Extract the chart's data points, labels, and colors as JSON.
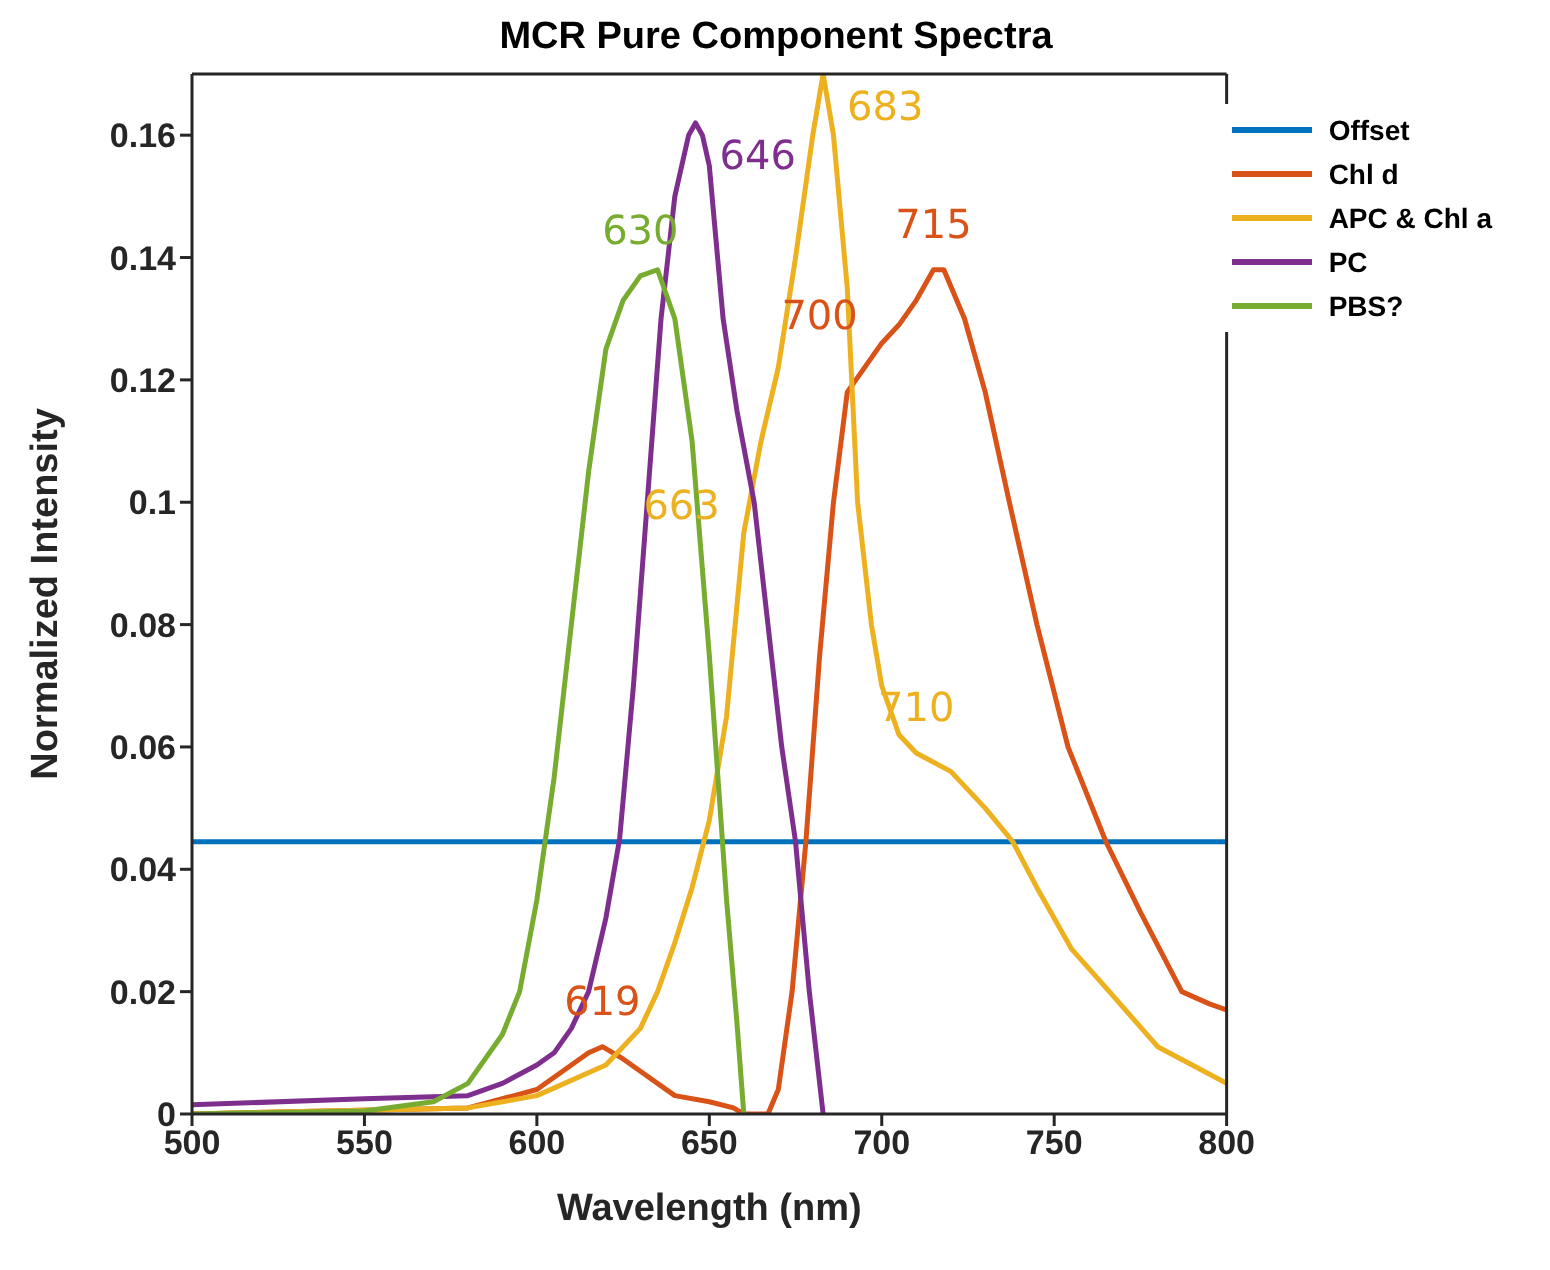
{
  "chart_data": {
    "type": "line",
    "title": "MCR Pure Component Spectra",
    "xlabel": "Wavelength (nm)",
    "ylabel": "Normalized Intensity",
    "xlim": [
      500,
      800
    ],
    "xticks": [
      500,
      550,
      600,
      650,
      700,
      750,
      800
    ],
    "ylim": [
      0,
      0.17
    ],
    "yticks": [
      0,
      0.02,
      0.04,
      0.06,
      0.08,
      0.1,
      0.12,
      0.14,
      0.16
    ],
    "grid": false,
    "legend": "top right",
    "marker": "none",
    "line_style": "solid",
    "series": [
      {
        "name": "Offset",
        "color": "#0072bd",
        "x": [
          500,
          800
        ],
        "values": [
          0.0445,
          0.0445
        ]
      },
      {
        "name": "Chl d",
        "color": "#d95319",
        "x": [
          500,
          580,
          600,
          610,
          615,
          619,
          625,
          630,
          640,
          650,
          657,
          660,
          667,
          670,
          674,
          678,
          682,
          686,
          690,
          695,
          700,
          705,
          710,
          715,
          718,
          724,
          730,
          737,
          745,
          754,
          765,
          775,
          787,
          795,
          800
        ],
        "values": [
          0,
          0.001,
          0.004,
          0.008,
          0.01,
          0.011,
          0.009,
          0.007,
          0.003,
          0.002,
          0.001,
          0,
          0,
          0.004,
          0.02,
          0.0445,
          0.075,
          0.1,
          0.118,
          0.122,
          0.126,
          0.129,
          0.133,
          0.138,
          0.138,
          0.13,
          0.118,
          0.1,
          0.08,
          0.06,
          0.0445,
          0.033,
          0.02,
          0.018,
          0.017
        ]
      },
      {
        "name": "APC & Chl a",
        "color": "#edb120",
        "x": [
          500,
          580,
          600,
          620,
          630,
          635,
          640,
          645,
          650,
          655,
          660,
          665,
          670,
          675,
          680,
          683,
          686,
          690,
          693,
          697,
          700,
          705,
          710,
          720,
          730,
          738,
          745,
          755,
          766,
          780,
          790,
          800
        ],
        "values": [
          0,
          0.001,
          0.003,
          0.008,
          0.014,
          0.02,
          0.028,
          0.037,
          0.048,
          0.065,
          0.095,
          0.11,
          0.122,
          0.14,
          0.16,
          0.17,
          0.16,
          0.135,
          0.1,
          0.08,
          0.07,
          0.062,
          0.059,
          0.056,
          0.05,
          0.0445,
          0.037,
          0.027,
          0.02,
          0.011,
          0.008,
          0.005
        ]
      },
      {
        "name": "PC",
        "color": "#7e2f8e",
        "x": [
          500,
          550,
          580,
          590,
          600,
          605,
          610,
          615,
          620,
          624,
          628,
          632,
          636,
          640,
          644,
          646,
          648,
          650,
          654,
          658,
          663,
          667,
          671,
          675,
          679,
          683
        ],
        "values": [
          0.0015,
          0.0025,
          0.003,
          0.005,
          0.008,
          0.01,
          0.014,
          0.02,
          0.032,
          0.045,
          0.07,
          0.1,
          0.13,
          0.15,
          0.16,
          0.162,
          0.16,
          0.155,
          0.13,
          0.115,
          0.1,
          0.08,
          0.06,
          0.0445,
          0.02,
          0
        ]
      },
      {
        "name": "PBS?",
        "color": "#77ac30",
        "x": [
          500,
          550,
          570,
          580,
          590,
          595,
          600,
          605,
          610,
          615,
          620,
          625,
          630,
          635,
          640,
          645,
          650,
          655,
          658,
          660
        ],
        "values": [
          0,
          0.0005,
          0.002,
          0.005,
          0.013,
          0.02,
          0.035,
          0.055,
          0.08,
          0.105,
          0.125,
          0.133,
          0.137,
          0.138,
          0.13,
          0.11,
          0.075,
          0.035,
          0.015,
          0
        ]
      }
    ],
    "annotations": [
      {
        "text": "630",
        "x": 630,
        "y": 0.137
      },
      {
        "text": "646",
        "x": 646,
        "y": 0.162
      },
      {
        "text": "683",
        "x": 683,
        "y": 0.17
      },
      {
        "text": "663",
        "x": 660,
        "y": 0.095
      },
      {
        "text": "710",
        "x": 710,
        "y": 0.059
      },
      {
        "text": "715",
        "x": 715,
        "y": 0.138
      },
      {
        "text": "700",
        "x": 700,
        "y": 0.126
      },
      {
        "text": "619",
        "x": 619,
        "y": 0.011
      }
    ]
  }
}
